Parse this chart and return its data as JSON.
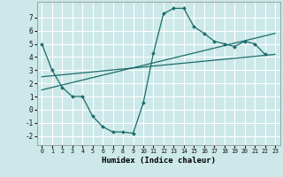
{
  "xlabel": "Humidex (Indice chaleur)",
  "background_color": "#cce8e8",
  "grid_color": "#ffffff",
  "line_color": "#1a6b6b",
  "xlim": [
    -0.5,
    23.5
  ],
  "ylim": [
    -2.7,
    8.2
  ],
  "xticks": [
    0,
    1,
    2,
    3,
    4,
    5,
    6,
    7,
    8,
    9,
    10,
    11,
    12,
    13,
    14,
    15,
    16,
    17,
    18,
    19,
    20,
    21,
    22,
    23
  ],
  "yticks": [
    -2,
    -1,
    0,
    1,
    2,
    3,
    4,
    5,
    6,
    7
  ],
  "series_main": {
    "x": [
      0,
      1,
      2,
      3,
      4,
      5,
      6,
      7,
      8,
      9,
      10,
      11,
      12,
      13,
      14,
      15,
      16,
      17,
      18,
      19,
      20,
      21,
      22
    ],
    "y": [
      5,
      3,
      1.7,
      1.0,
      1.0,
      -0.5,
      -1.3,
      -1.7,
      -1.7,
      -1.8,
      0.5,
      4.3,
      7.3,
      7.7,
      7.7,
      6.3,
      5.8,
      5.2,
      5.0,
      4.8,
      5.2,
      5.0,
      4.2
    ]
  },
  "series_line1": {
    "x": [
      0,
      23
    ],
    "y": [
      2.5,
      4.2
    ]
  },
  "series_line2": {
    "x": [
      0,
      23
    ],
    "y": [
      1.5,
      5.8
    ]
  }
}
